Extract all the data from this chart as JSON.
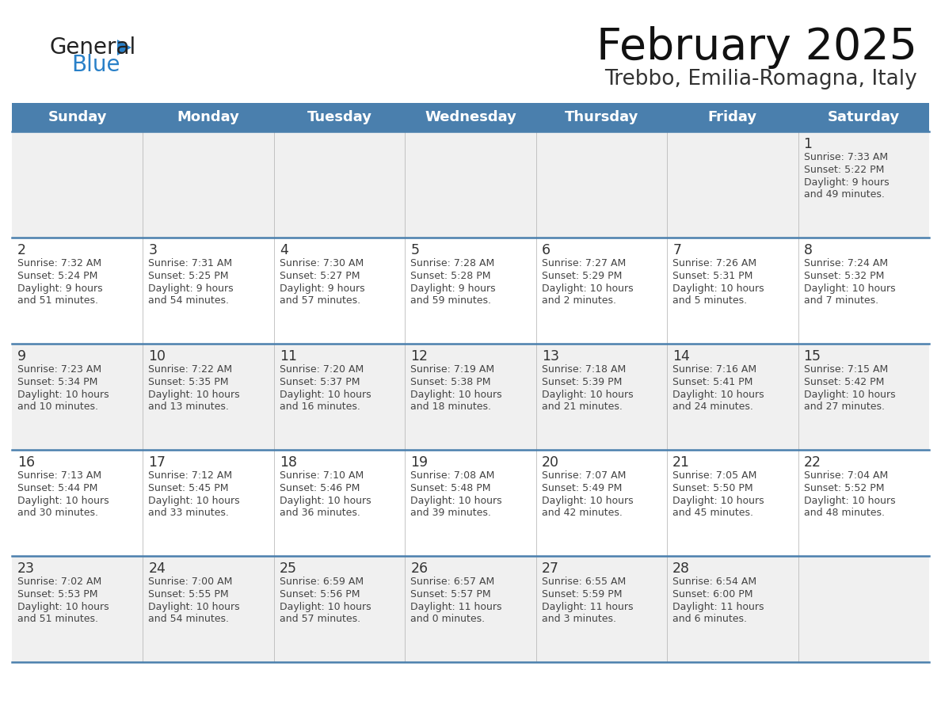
{
  "title": "February 2025",
  "subtitle": "Trebbo, Emilia-Romagna, Italy",
  "days_of_week": [
    "Sunday",
    "Monday",
    "Tuesday",
    "Wednesday",
    "Thursday",
    "Friday",
    "Saturday"
  ],
  "header_bg": "#4a7fad",
  "header_text": "#ffffff",
  "row_bg_even": "#f0f0f0",
  "row_bg_odd": "#ffffff",
  "cell_text": "#444444",
  "date_text": "#333333",
  "border_color": "#4a7fad",
  "logo_general_color": "#222222",
  "logo_blue_color": "#2980C8",
  "calendar": [
    [
      null,
      null,
      null,
      null,
      null,
      null,
      {
        "day": 1,
        "sunrise": "7:33 AM",
        "sunset": "5:22 PM",
        "daylight": "9 hours and 49 minutes."
      }
    ],
    [
      {
        "day": 2,
        "sunrise": "7:32 AM",
        "sunset": "5:24 PM",
        "daylight": "9 hours and 51 minutes."
      },
      {
        "day": 3,
        "sunrise": "7:31 AM",
        "sunset": "5:25 PM",
        "daylight": "9 hours and 54 minutes."
      },
      {
        "day": 4,
        "sunrise": "7:30 AM",
        "sunset": "5:27 PM",
        "daylight": "9 hours and 57 minutes."
      },
      {
        "day": 5,
        "sunrise": "7:28 AM",
        "sunset": "5:28 PM",
        "daylight": "9 hours and 59 minutes."
      },
      {
        "day": 6,
        "sunrise": "7:27 AM",
        "sunset": "5:29 PM",
        "daylight": "10 hours and 2 minutes."
      },
      {
        "day": 7,
        "sunrise": "7:26 AM",
        "sunset": "5:31 PM",
        "daylight": "10 hours and 5 minutes."
      },
      {
        "day": 8,
        "sunrise": "7:24 AM",
        "sunset": "5:32 PM",
        "daylight": "10 hours and 7 minutes."
      }
    ],
    [
      {
        "day": 9,
        "sunrise": "7:23 AM",
        "sunset": "5:34 PM",
        "daylight": "10 hours and 10 minutes."
      },
      {
        "day": 10,
        "sunrise": "7:22 AM",
        "sunset": "5:35 PM",
        "daylight": "10 hours and 13 minutes."
      },
      {
        "day": 11,
        "sunrise": "7:20 AM",
        "sunset": "5:37 PM",
        "daylight": "10 hours and 16 minutes."
      },
      {
        "day": 12,
        "sunrise": "7:19 AM",
        "sunset": "5:38 PM",
        "daylight": "10 hours and 18 minutes."
      },
      {
        "day": 13,
        "sunrise": "7:18 AM",
        "sunset": "5:39 PM",
        "daylight": "10 hours and 21 minutes."
      },
      {
        "day": 14,
        "sunrise": "7:16 AM",
        "sunset": "5:41 PM",
        "daylight": "10 hours and 24 minutes."
      },
      {
        "day": 15,
        "sunrise": "7:15 AM",
        "sunset": "5:42 PM",
        "daylight": "10 hours and 27 minutes."
      }
    ],
    [
      {
        "day": 16,
        "sunrise": "7:13 AM",
        "sunset": "5:44 PM",
        "daylight": "10 hours and 30 minutes."
      },
      {
        "day": 17,
        "sunrise": "7:12 AM",
        "sunset": "5:45 PM",
        "daylight": "10 hours and 33 minutes."
      },
      {
        "day": 18,
        "sunrise": "7:10 AM",
        "sunset": "5:46 PM",
        "daylight": "10 hours and 36 minutes."
      },
      {
        "day": 19,
        "sunrise": "7:08 AM",
        "sunset": "5:48 PM",
        "daylight": "10 hours and 39 minutes."
      },
      {
        "day": 20,
        "sunrise": "7:07 AM",
        "sunset": "5:49 PM",
        "daylight": "10 hours and 42 minutes."
      },
      {
        "day": 21,
        "sunrise": "7:05 AM",
        "sunset": "5:50 PM",
        "daylight": "10 hours and 45 minutes."
      },
      {
        "day": 22,
        "sunrise": "7:04 AM",
        "sunset": "5:52 PM",
        "daylight": "10 hours and 48 minutes."
      }
    ],
    [
      {
        "day": 23,
        "sunrise": "7:02 AM",
        "sunset": "5:53 PM",
        "daylight": "10 hours and 51 minutes."
      },
      {
        "day": 24,
        "sunrise": "7:00 AM",
        "sunset": "5:55 PM",
        "daylight": "10 hours and 54 minutes."
      },
      {
        "day": 25,
        "sunrise": "6:59 AM",
        "sunset": "5:56 PM",
        "daylight": "10 hours and 57 minutes."
      },
      {
        "day": 26,
        "sunrise": "6:57 AM",
        "sunset": "5:57 PM",
        "daylight": "11 hours and 0 minutes."
      },
      {
        "day": 27,
        "sunrise": "6:55 AM",
        "sunset": "5:59 PM",
        "daylight": "11 hours and 3 minutes."
      },
      {
        "day": 28,
        "sunrise": "6:54 AM",
        "sunset": "6:00 PM",
        "daylight": "11 hours and 6 minutes."
      },
      null
    ]
  ]
}
